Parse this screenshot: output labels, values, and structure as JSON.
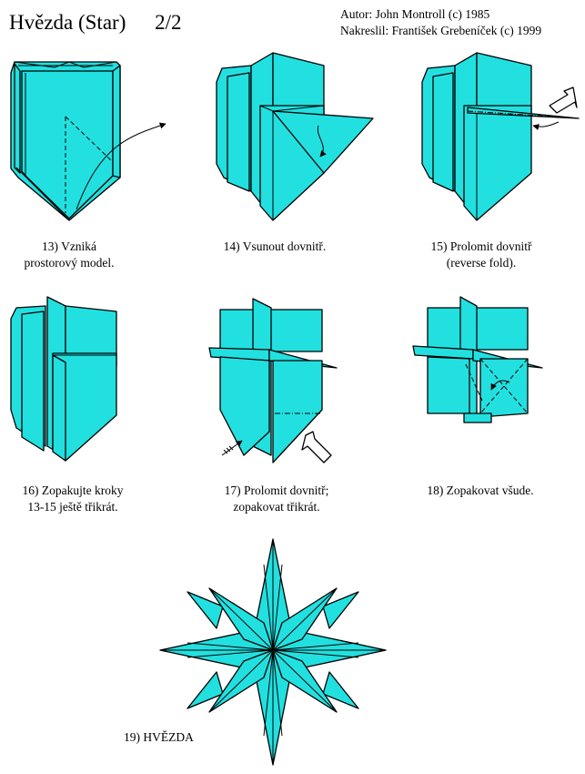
{
  "header": {
    "title": "Hvězda (Star)",
    "page": "2/2",
    "author": "Autor: John Montroll (c) 1985",
    "drawn_by": "Nakreslil: František Grebeníček (c) 1999"
  },
  "steps": [
    {
      "line1": "13) Vzniká",
      "line2": "prostorový model."
    },
    {
      "line1": "14) Vsunout dovnitř.",
      "line2": ""
    },
    {
      "line1": "15) Prolomit dovnitř",
      "line2": "(reverse fold)."
    },
    {
      "line1": "16) Zopakujte kroky",
      "line2": "13-15 ještě třikrát."
    },
    {
      "line1": "17) Prolomit dovnitř;",
      "line2": "zopakovat třikrát."
    },
    {
      "line1": "18) Zopakovat všude.",
      "line2": ""
    },
    {
      "line1": "19) HVĚZDA",
      "line2": ""
    }
  ],
  "colors": {
    "paper": "#22E0E0",
    "line": "#000000",
    "background": "#FFFFFF"
  }
}
